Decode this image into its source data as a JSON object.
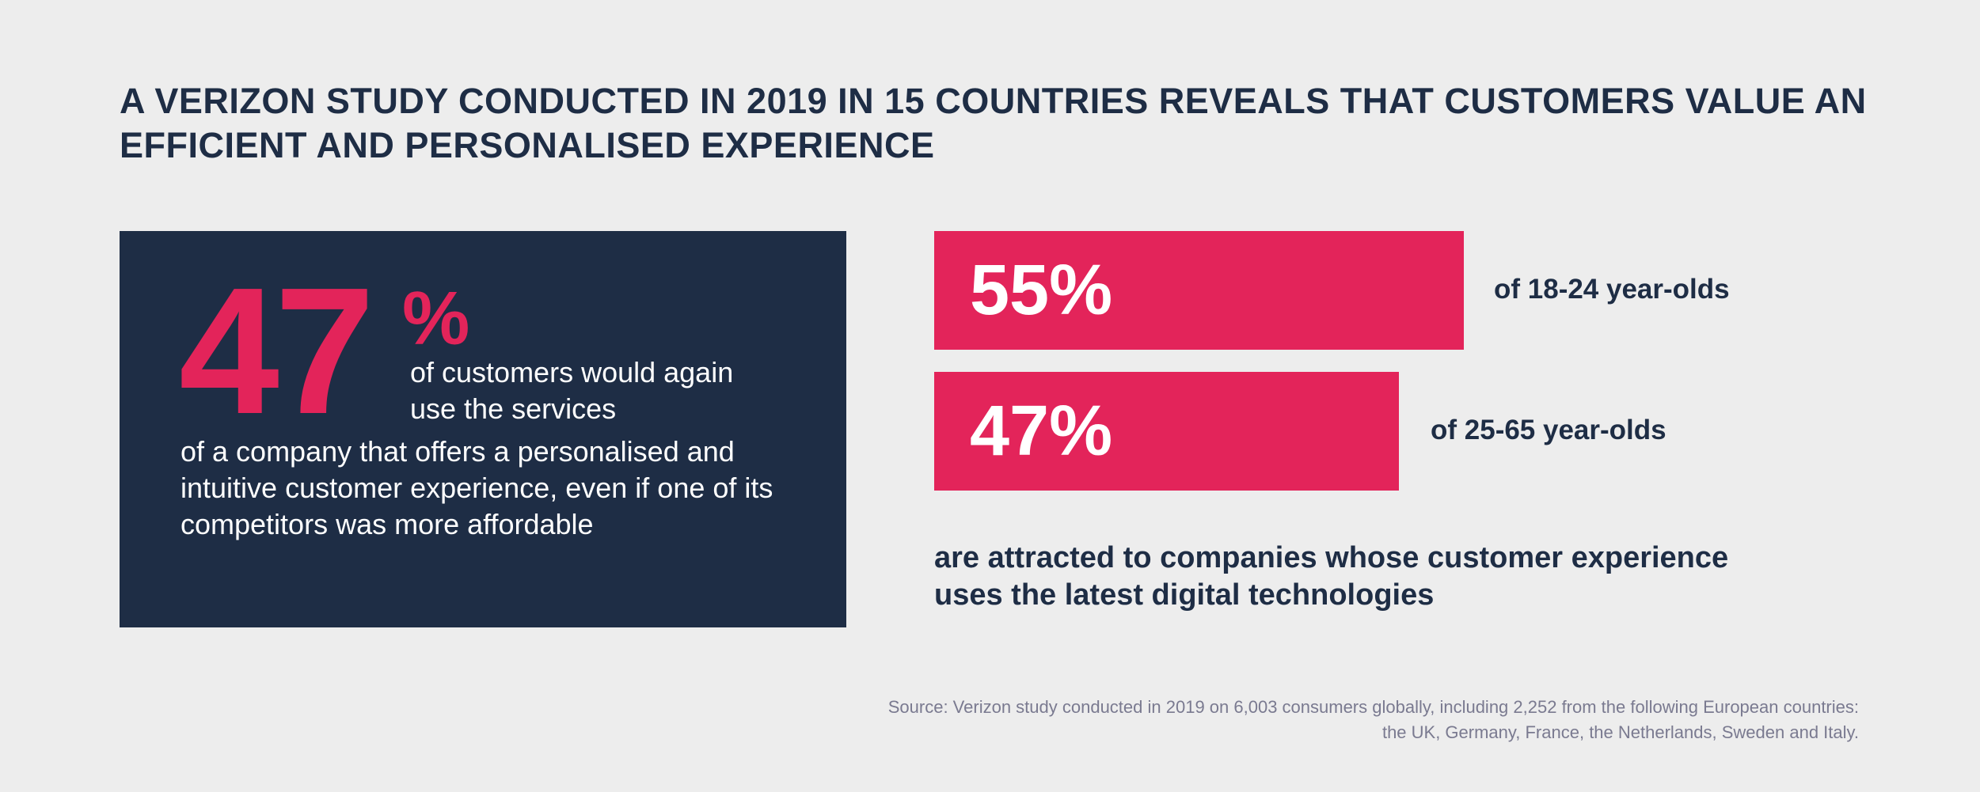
{
  "title": "A Verizon study conducted in 2019 in 15 countries reveals that customers value an efficient and personalised experience",
  "left_panel": {
    "big_number": "47",
    "percent_sign": "%",
    "text_line1": "of customers would again use the services",
    "text_rest": "of a company that offers a personalised and intuitive customer experience, even if one of its competitors was more affordable"
  },
  "bars": [
    {
      "value_label": "55%",
      "value": 55,
      "caption": "of 18-24 year-olds"
    },
    {
      "value_label": "47%",
      "value": 47,
      "caption": "of 25-65 year-olds"
    }
  ],
  "bars_note": "are attracted to companies whose customer experience uses the latest digital technologies",
  "source": {
    "line1": "Source: Verizon study conducted in 2019 on 6,003 consumers globally, including 2,252 from the following European countries:",
    "line2": "the UK, Germany, France, the Netherlands, Sweden and Italy."
  },
  "colors": {
    "background": "#ededed",
    "navy": "#1e2d45",
    "accent": "#e3245a"
  }
}
